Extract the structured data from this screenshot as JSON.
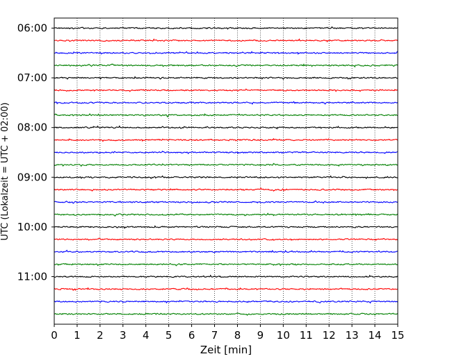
{
  "chart_data": {
    "type": "line",
    "title": "",
    "xlabel": "Zeit  [min]",
    "ylabel": "UTC (Lokalzeit = UTC + 02:00)",
    "xlim": [
      0,
      15
    ],
    "x_ticks": [
      0,
      1,
      2,
      3,
      4,
      5,
      6,
      7,
      8,
      9,
      10,
      11,
      12,
      13,
      14,
      15
    ],
    "x_tick_labels": [
      "0",
      "1",
      "2",
      "3",
      "4",
      "5",
      "6",
      "7",
      "8",
      "9",
      "10",
      "11",
      "12",
      "13",
      "14",
      "15"
    ],
    "y_tick_labels": [
      "06:00",
      "07:00",
      "08:00",
      "09:00",
      "10:00",
      "11:00"
    ],
    "trace_minutes": 15,
    "trace_start_times": [
      "06:00",
      "06:15",
      "06:30",
      "06:45",
      "07:00",
      "07:15",
      "07:30",
      "07:45",
      "08:00",
      "08:15",
      "08:30",
      "08:45",
      "09:00",
      "09:15",
      "09:30",
      "09:45",
      "10:00",
      "10:15",
      "10:30",
      "10:45",
      "11:00",
      "11:15",
      "11:30",
      "11:45"
    ],
    "trace_colors": [
      "#000000",
      "#ff0000",
      "#0000ff",
      "#008000"
    ],
    "grid": "vertical-dotted",
    "legend": "none"
  }
}
